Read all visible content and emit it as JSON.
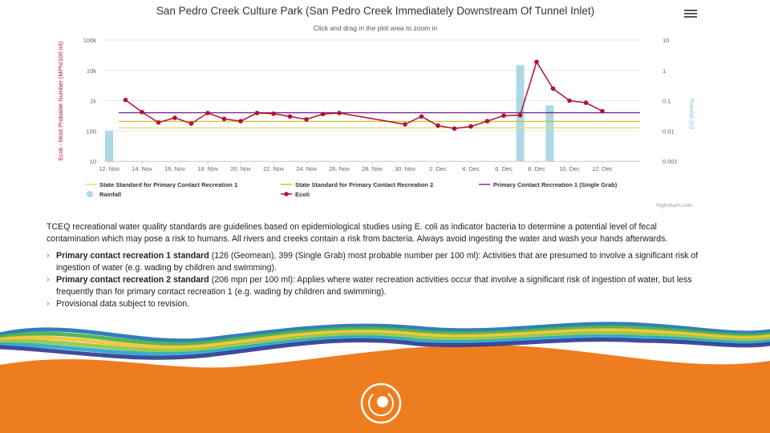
{
  "menu_icon": "hamburger-icon",
  "chart_data": {
    "type": "bar+line",
    "title": "San Pedro Creek Culture Park (San Pedro Creek Immediately Downstream Of Tunnel Inlet)",
    "subtitle": "Click and drag in the plot area to zoom in",
    "ylabel_left": "Ecoli - Most Probable Number (MPN/100 ml)",
    "ylabel_right": "Rainfall (in)",
    "y_left_scale": "log",
    "y_left_range": [
      10,
      100000
    ],
    "y_left_ticks": [
      "10",
      "100",
      "1k",
      "10k",
      "100k"
    ],
    "y_right_scale": "log",
    "y_right_range": [
      0.001,
      10
    ],
    "y_right_ticks": [
      "0.001",
      "0.01",
      "0.1",
      "1",
      "10"
    ],
    "x_tick_labels": [
      "12. Nov",
      "14. Nov",
      "16. Nov",
      "18. Nov",
      "20. Nov",
      "22. Nov",
      "24. Nov",
      "26. Nov",
      "28. Nov",
      "30. Nov",
      "2. Dec",
      "4. Dec",
      "6. Dec",
      "8. Dec",
      "10. Dec",
      "12. Dec"
    ],
    "x_start": "2017-11-12",
    "grid": true,
    "legend_position": "bottom",
    "standards": [
      {
        "name": "State Standard for Primary Contact Recreation 1",
        "value": 126,
        "color": "#e8dc6a"
      },
      {
        "name": "State Standard for Primary Contact Recreation 2",
        "value": 206,
        "color": "#d8bc2c"
      },
      {
        "name": "Primary Contact Recreation 1 (Single Grab)",
        "value": 399,
        "color": "#7a2a8c"
      }
    ],
    "rainfall": {
      "name": "Rainfall",
      "color": "#add8e6",
      "points": [
        {
          "day": 0,
          "value": 0.01
        },
        {
          "day": 25,
          "value": 1.5
        },
        {
          "day": 26.8,
          "value": 0.07
        }
      ]
    },
    "ecoli": {
      "name": "Ecoli",
      "color": "#b3122e",
      "points": [
        {
          "day": 1,
          "value": 1050
        },
        {
          "day": 2,
          "value": 420
        },
        {
          "day": 3,
          "value": 190
        },
        {
          "day": 4,
          "value": 270
        },
        {
          "day": 5,
          "value": 175
        },
        {
          "day": 6,
          "value": 390
        },
        {
          "day": 7,
          "value": 250
        },
        {
          "day": 8,
          "value": 210
        },
        {
          "day": 9,
          "value": 390
        },
        {
          "day": 10,
          "value": 370
        },
        {
          "day": 11,
          "value": 300
        },
        {
          "day": 12,
          "value": 240
        },
        {
          "day": 13,
          "value": 360
        },
        {
          "day": 14,
          "value": 390
        },
        {
          "day": 18,
          "value": 165
        },
        {
          "day": 19,
          "value": 300
        },
        {
          "day": 20,
          "value": 150
        },
        {
          "day": 21,
          "value": 120
        },
        {
          "day": 22,
          "value": 140
        },
        {
          "day": 23,
          "value": 210
        },
        {
          "day": 24,
          "value": 320
        },
        {
          "day": 25,
          "value": 330
        },
        {
          "day": 26,
          "value": 19000
        },
        {
          "day": 27,
          "value": 2500
        },
        {
          "day": 28,
          "value": 1000
        },
        {
          "day": 29,
          "value": 850
        },
        {
          "day": 30,
          "value": 450
        }
      ]
    },
    "credits": "Highcharts.com"
  },
  "description": {
    "intro": "TCEQ recreational water quality standards are guidelines based on epidemiological studies using E. coli as indicator bacteria to determine a potential level of fecal contamination which may pose a risk to humans. All rivers and creeks contain a risk from bacteria. Always avoid ingesting the water and wash your hands afterwards.",
    "bullets": [
      {
        "bold": "Primary contact recreation 1 standard",
        "text": " (126 (Geomean), 399 (Single Grab) most probable number per 100 ml): Activities that are presumed to involve a significant risk of ingestion of water (e.g. wading by children and swimming)."
      },
      {
        "bold": "Primary contact recreation 2 standard",
        "text": " (206 mpn per 100 ml): Applies where water recreation activities occur that involve a significant risk of ingestion of water, but less frequently than for primary contact recreation 1 (e.g. wading by children and swimming)."
      },
      {
        "bold": "",
        "text": "Provisional data subject to revision."
      }
    ]
  },
  "footer": {
    "band_color": "#ee7d1f",
    "wave_colors": [
      "#1e6fb5",
      "#3fae49",
      "#f2c12e",
      "#8cc63f",
      "#27a3c9",
      "#2b3990"
    ],
    "logo_icon": "spiral-sun-logo-icon"
  }
}
